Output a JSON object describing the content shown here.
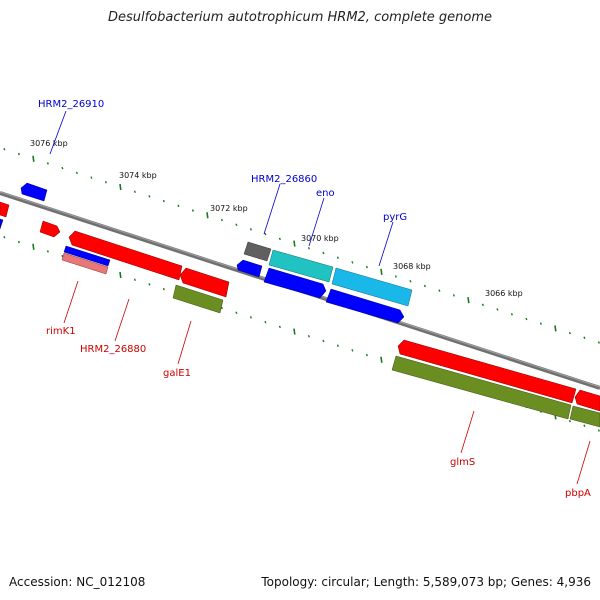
{
  "title": "Desulfobacterium autotrophicum HRM2, complete genome",
  "footer": {
    "accession": "Accession: NC_012108",
    "summary": "Topology: circular; Length: 5,589,073 bp; Genes: 4,936"
  },
  "colors": {
    "backbone": "#808080",
    "ticks": "#1a7a1a",
    "forward_cds": "#ff0000",
    "reverse_cds": "#0000ff",
    "cog": "#6b8e23",
    "rna_teal": "#20c2c2",
    "rna_sky": "#1ab8e8",
    "other": "#606060",
    "label_blue": "#0000cc",
    "label_red": "#cc0000"
  },
  "ticks": [
    {
      "label": "3076 kbp"
    },
    {
      "label": "3074 kbp"
    },
    {
      "label": "3072 kbp"
    },
    {
      "label": "3070 kbp"
    },
    {
      "label": "3068 kbp"
    },
    {
      "label": "3066 kbp"
    }
  ],
  "gene_labels": [
    {
      "text": "HRM2_26910",
      "color": "blue"
    },
    {
      "text": "HRM2_26860",
      "color": "blue"
    },
    {
      "text": "eno",
      "color": "blue"
    },
    {
      "text": "pyrG",
      "color": "blue"
    },
    {
      "text": "rimK1",
      "color": "red"
    },
    {
      "text": "HRM2_26880",
      "color": "red"
    },
    {
      "text": "galE1",
      "color": "red"
    },
    {
      "text": "glmS",
      "color": "red"
    },
    {
      "text": "pbpA",
      "color": "red"
    }
  ]
}
